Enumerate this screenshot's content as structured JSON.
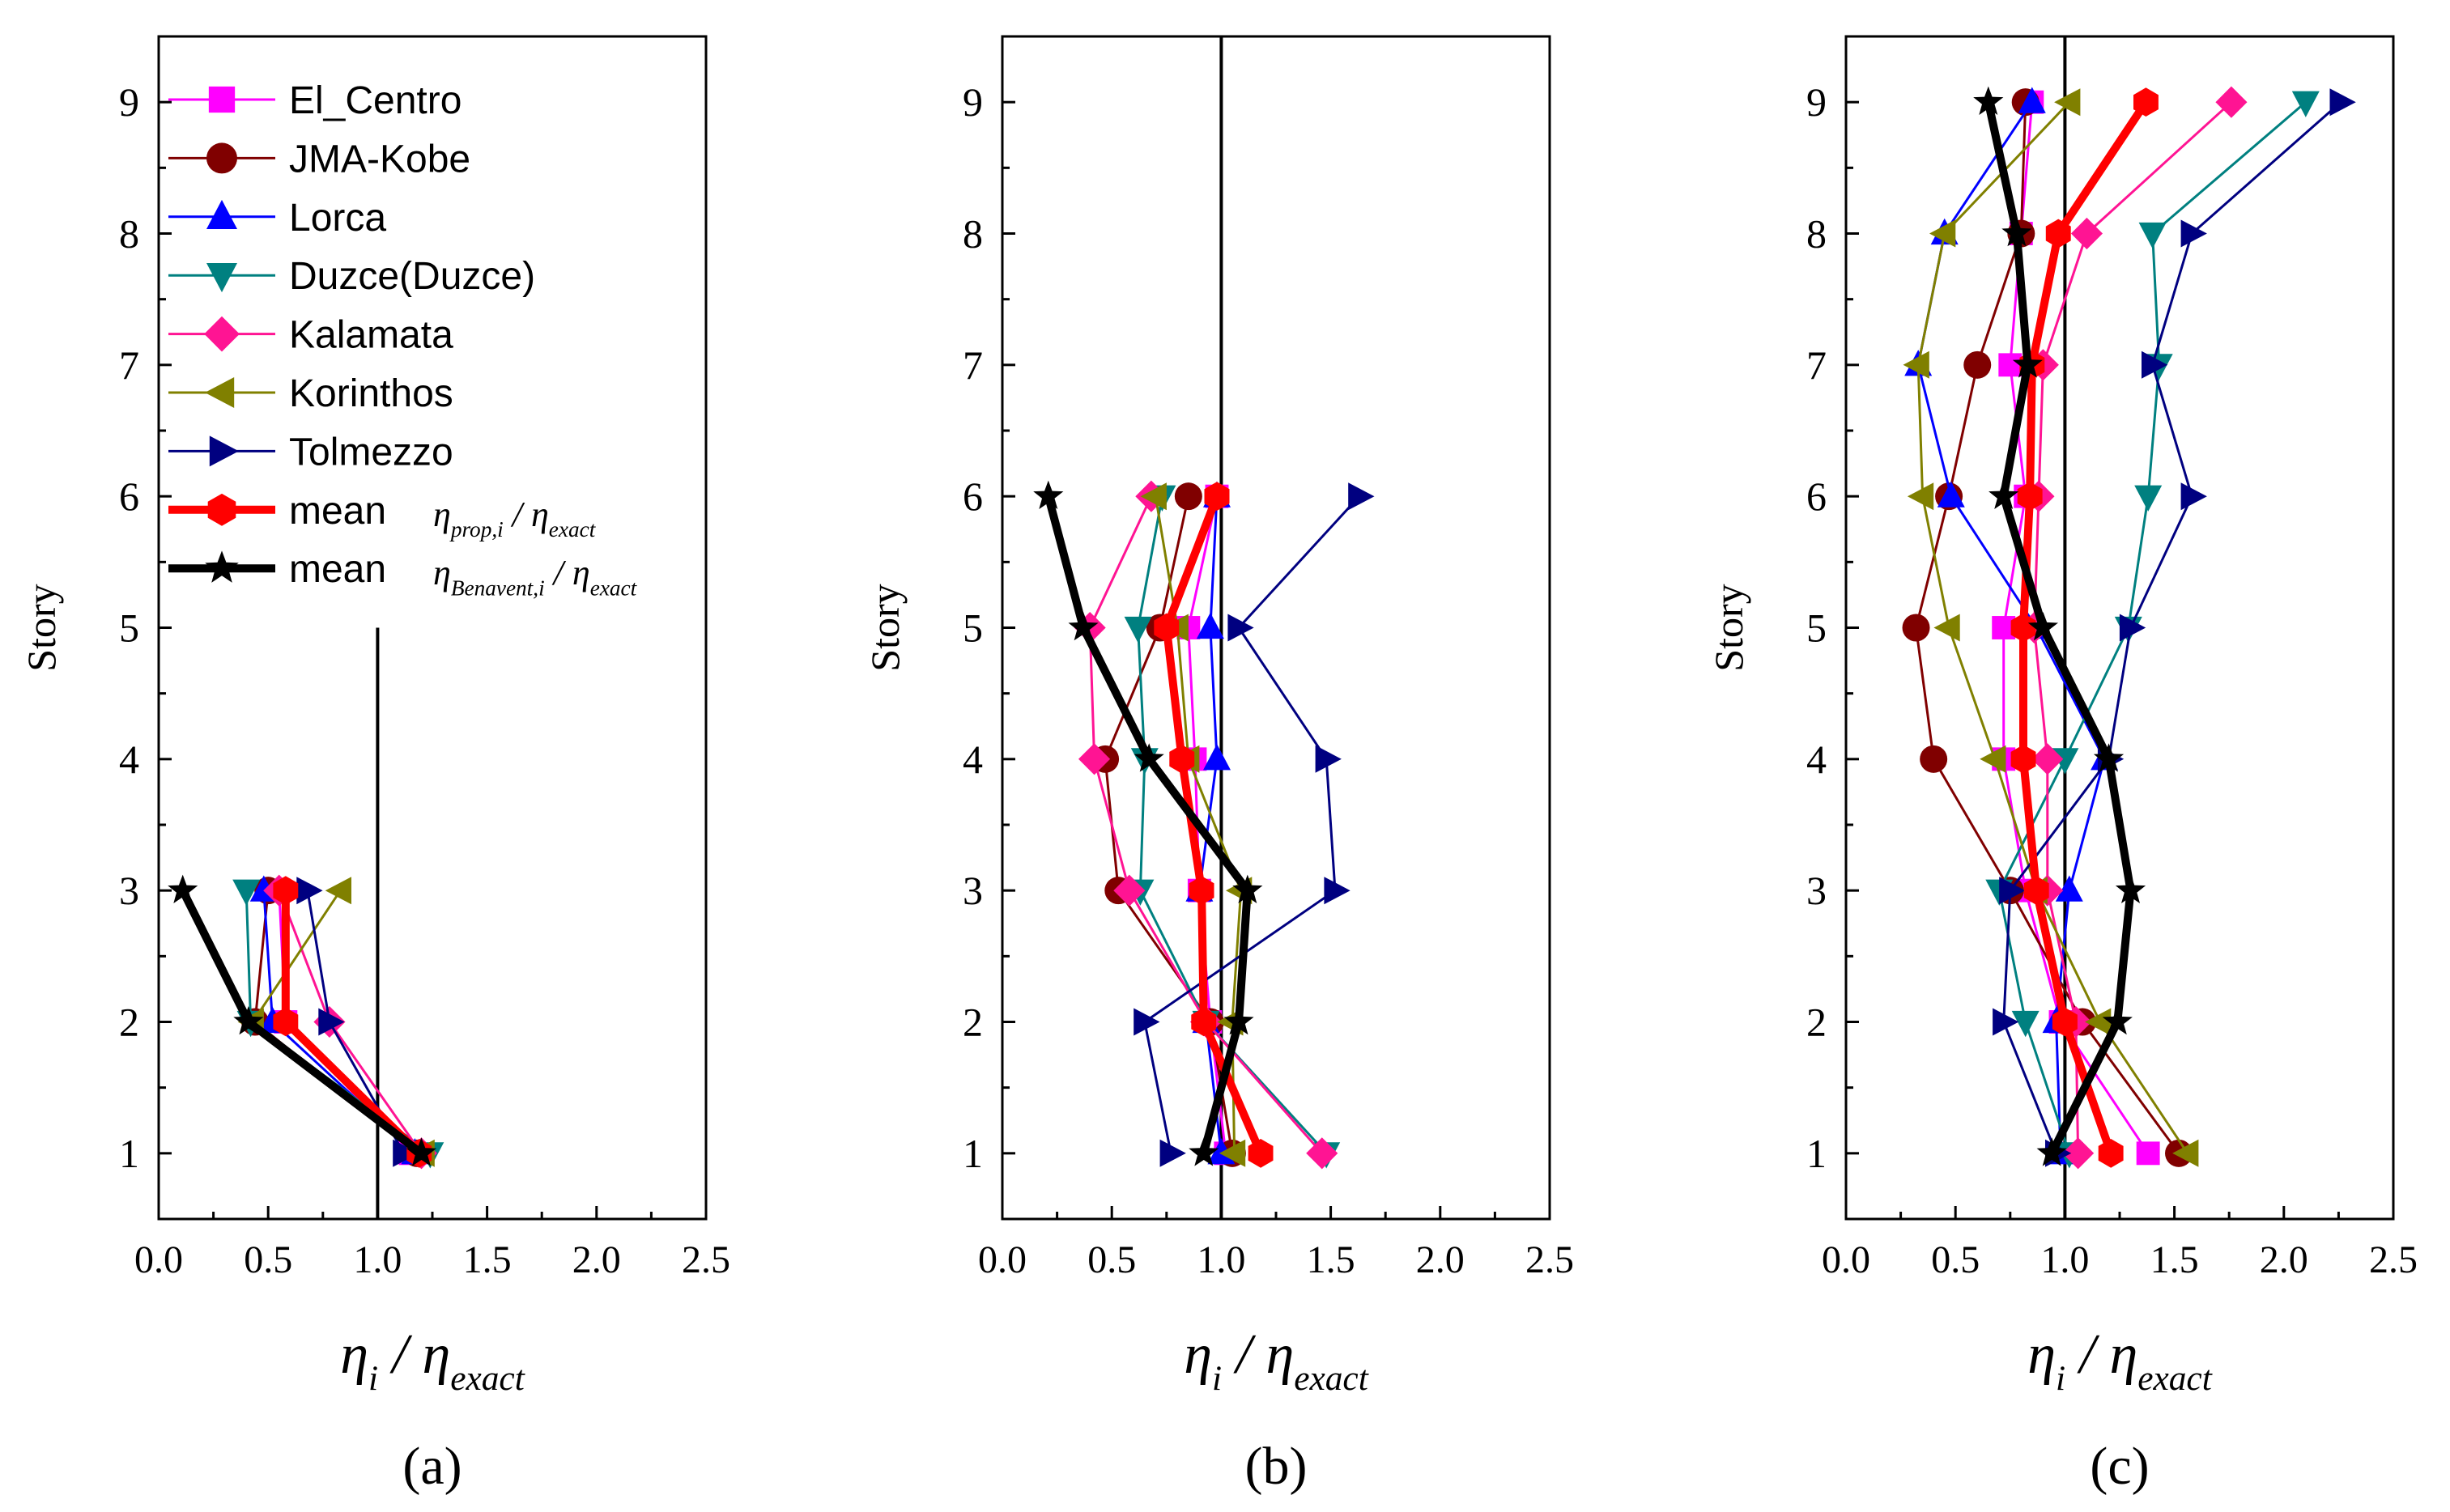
{
  "figure": {
    "x_label_parts": [
      "η",
      "i",
      " / η",
      "exact"
    ],
    "y_label": "Story"
  },
  "legend": {
    "items": [
      "El_Centro",
      "JMA-Kobe",
      "Lorca",
      "Duzce(Duzce)",
      "Kalamata",
      "Korinthos",
      "Tolmezzo"
    ],
    "mean_prop": {
      "label": "mean",
      "formula": [
        "η",
        "prop,i",
        " / η",
        "exact"
      ]
    },
    "mean_benavent": {
      "label": "mean",
      "formula": [
        "η",
        "Benavent,i",
        " / η",
        "exact"
      ]
    }
  },
  "series_style": [
    {
      "name": "El_Centro",
      "color": "#ff00ff",
      "marker": "square"
    },
    {
      "name": "JMA-Kobe",
      "color": "#800000",
      "marker": "circle"
    },
    {
      "name": "Lorca",
      "color": "#0000ff",
      "marker": "triangle-up"
    },
    {
      "name": "Duzce(Duzce)",
      "color": "#008080",
      "marker": "triangle-down"
    },
    {
      "name": "Kalamata",
      "color": "#ff1493",
      "marker": "diamond"
    },
    {
      "name": "Korinthos",
      "color": "#808000",
      "marker": "triangle-left"
    },
    {
      "name": "Tolmezzo",
      "color": "#000080",
      "marker": "triangle-right"
    },
    {
      "name": "mean η_prop,i / η_exact",
      "color": "#ff0000",
      "marker": "hexagon"
    },
    {
      "name": "mean η_Benavent,i / η_exact",
      "color": "#000000",
      "marker": "star"
    }
  ],
  "chart_data": [
    {
      "type": "line",
      "panel_label": "(a)",
      "xlim": [
        0,
        2.5
      ],
      "ylim": [
        0.5,
        9.5
      ],
      "x_ticks": [
        "0.0",
        "0.5",
        "1.0",
        "1.5",
        "2.0",
        "2.5"
      ],
      "y_ticks": [
        "1",
        "2",
        "3",
        "4",
        "5",
        "6",
        "7",
        "8",
        "9"
      ],
      "xlabel": "η_i / η_exact",
      "ylabel": "Story",
      "reference_line": {
        "x": 1.0,
        "y_range": [
          0.5,
          5
        ]
      },
      "y": [
        1,
        2,
        3
      ],
      "series": [
        {
          "name": "El_Centro",
          "values": [
            1.15,
            0.58,
            0.55
          ]
        },
        {
          "name": "JMA-Kobe",
          "values": [
            1.18,
            0.44,
            0.5
          ]
        },
        {
          "name": "Lorca",
          "values": [
            1.17,
            0.52,
            0.48
          ]
        },
        {
          "name": "Duzce(Duzce)",
          "values": [
            1.24,
            0.42,
            0.4
          ]
        },
        {
          "name": "Kalamata",
          "values": [
            1.2,
            0.78,
            0.55
          ]
        },
        {
          "name": "Korinthos",
          "values": [
            1.21,
            0.43,
            0.83
          ]
        },
        {
          "name": "Tolmezzo",
          "values": [
            1.12,
            0.78,
            0.68
          ]
        },
        {
          "name": "mean η_prop,i / η_exact",
          "values": [
            1.19,
            0.58,
            0.58
          ]
        },
        {
          "name": "mean η_Benavent,i / η_exact",
          "values": [
            1.2,
            0.41,
            0.11
          ]
        }
      ]
    },
    {
      "type": "line",
      "panel_label": "(b)",
      "xlim": [
        0,
        2.5
      ],
      "ylim": [
        0.5,
        9.5
      ],
      "x_ticks": [
        "0.0",
        "0.5",
        "1.0",
        "1.5",
        "2.0",
        "2.5"
      ],
      "y_ticks": [
        "1",
        "2",
        "3",
        "4",
        "5",
        "6",
        "7",
        "8",
        "9"
      ],
      "xlabel": "η_i / η_exact",
      "ylabel": "Story",
      "reference_line": {
        "x": 1.0,
        "y_range": [
          0.5,
          9.5
        ]
      },
      "y": [
        1,
        2,
        3,
        4,
        5,
        6
      ],
      "series": [
        {
          "name": "El_Centro",
          "values": [
            1.02,
            0.95,
            0.9,
            0.88,
            0.85,
            0.98
          ]
        },
        {
          "name": "JMA-Kobe",
          "values": [
            1.05,
            0.95,
            0.53,
            0.47,
            0.72,
            0.85
          ]
        },
        {
          "name": "Lorca",
          "values": [
            1.0,
            0.93,
            0.9,
            0.98,
            0.95,
            0.98
          ]
        },
        {
          "name": "Duzce(Duzce)",
          "values": [
            1.48,
            0.93,
            0.63,
            0.65,
            0.62,
            0.73
          ]
        },
        {
          "name": "Kalamata",
          "values": [
            1.46,
            0.93,
            0.58,
            0.42,
            0.4,
            0.68
          ]
        },
        {
          "name": "Korinthos",
          "values": [
            1.06,
            1.05,
            1.09,
            0.85,
            0.8,
            0.7
          ]
        },
        {
          "name": "Tolmezzo",
          "values": [
            0.77,
            0.65,
            1.52,
            1.48,
            1.08,
            1.63
          ]
        },
        {
          "name": "mean η_prop,i / η_exact",
          "values": [
            1.18,
            0.92,
            0.91,
            0.82,
            0.75,
            0.98
          ]
        },
        {
          "name": "mean η_Benavent,i / η_exact",
          "values": [
            0.92,
            1.08,
            1.12,
            0.67,
            0.37,
            0.21
          ]
        }
      ]
    },
    {
      "type": "line",
      "panel_label": "(c)",
      "xlim": [
        0,
        2.5
      ],
      "ylim": [
        0.5,
        9.5
      ],
      "x_ticks": [
        "0.0",
        "0.5",
        "1.0",
        "1.5",
        "2.0",
        "2.5"
      ],
      "y_ticks": [
        "1",
        "2",
        "3",
        "4",
        "5",
        "6",
        "7",
        "8",
        "9"
      ],
      "xlabel": "η_i / η_exact",
      "ylabel": "Story",
      "reference_line": {
        "x": 1.0,
        "y_range": [
          0.5,
          9.5
        ]
      },
      "y": [
        1,
        2,
        3,
        4,
        5,
        6,
        7,
        8,
        9
      ],
      "series": [
        {
          "name": "El_Centro",
          "values": [
            1.38,
            0.98,
            0.82,
            0.72,
            0.72,
            0.82,
            0.75,
            0.8,
            0.85
          ]
        },
        {
          "name": "JMA-Kobe",
          "values": [
            1.52,
            1.08,
            0.75,
            0.4,
            0.32,
            0.47,
            0.6,
            0.8,
            0.82
          ]
        },
        {
          "name": "Lorca",
          "values": [
            0.98,
            0.96,
            1.02,
            1.18,
            0.87,
            0.48,
            0.33,
            0.45,
            0.85
          ]
        },
        {
          "name": "Duzce(Duzce)",
          "values": [
            1.02,
            0.82,
            0.7,
            1.0,
            1.29,
            1.38,
            1.43,
            1.4,
            2.1
          ]
        },
        {
          "name": "Kalamata",
          "values": [
            1.06,
            1.05,
            0.92,
            0.92,
            0.86,
            0.88,
            0.9,
            1.1,
            1.76
          ]
        },
        {
          "name": "Korinthos",
          "values": [
            1.56,
            1.16,
            0.87,
            0.68,
            0.47,
            0.35,
            0.33,
            0.45,
            1.02
          ]
        },
        {
          "name": "Tolmezzo",
          "values": [
            0.96,
            0.72,
            0.75,
            1.2,
            1.3,
            1.58,
            1.4,
            1.58,
            2.26
          ]
        },
        {
          "name": "mean η_prop,i / η_exact",
          "values": [
            1.21,
            1.0,
            0.87,
            0.81,
            0.81,
            0.84,
            0.85,
            0.97,
            1.37
          ]
        },
        {
          "name": "mean η_Benavent,i / η_exact",
          "values": [
            0.94,
            1.24,
            1.3,
            1.2,
            0.9,
            0.72,
            0.83,
            0.78,
            0.65
          ]
        }
      ]
    }
  ]
}
